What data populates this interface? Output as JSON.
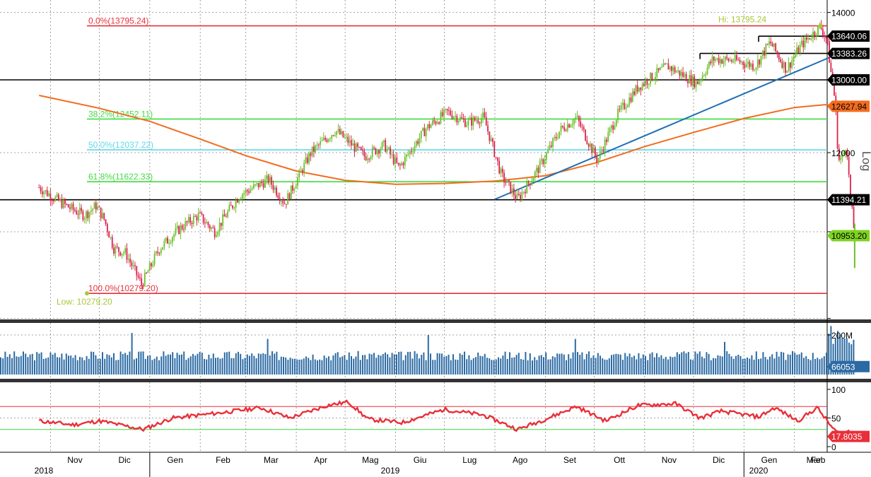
{
  "chart_data": {
    "type": "candlestick",
    "months": [
      "Nov",
      "Dic",
      "Gen",
      "Feb",
      "Mar",
      "Apr",
      "Mag",
      "Giu",
      "Lug",
      "Ago",
      "Set",
      "Ott",
      "Nov",
      "Dic",
      "Gen",
      "Feb",
      "Mar"
    ],
    "years": [
      "2018",
      "2019",
      "2020"
    ],
    "price_axis": {
      "ticks": [
        "14000",
        "13000",
        "12000"
      ],
      "scale_label": "Log",
      "range": [
        10000,
        14200
      ]
    },
    "levels": [
      {
        "label": "0.0%(13795.24)",
        "value": 13795.24,
        "color": "#e8303a"
      },
      {
        "label": "38.2%(12452.11)",
        "value": 12452.11,
        "color": "#3fdc3f"
      },
      {
        "label": "50.0%(12037.22)",
        "value": 12037.22,
        "color": "#5fd8ea"
      },
      {
        "label": "61.8%(11622.33)",
        "value": 11622.33,
        "color": "#3fdc3f"
      },
      {
        "label": "100.0%(10279.20)",
        "value": 10279.2,
        "color": "#e8303a"
      }
    ],
    "hlines": [
      13000.0,
      11394.21
    ],
    "resistance_segments": [
      {
        "value": 13640.06,
        "from_date": "2020-01-10",
        "to_date": "2020-03-03"
      },
      {
        "value": 13383.26,
        "from_date": "2019-12-05",
        "to_date": "2020-03-03"
      }
    ],
    "trendline": {
      "from_date": "2019-08-01",
      "from_value": 11400,
      "to_date": "2020-03-03",
      "to_value": 13420
    },
    "hi_label": "Hi: 13795.24",
    "low_label": "Low: 10279.20",
    "price_tags": [
      {
        "text": "13640.06",
        "value": 13640.06,
        "bg": "#000000",
        "fg": "#ffffff"
      },
      {
        "text": "13383.26",
        "value": 13383.26,
        "bg": "#000000",
        "fg": "#ffffff"
      },
      {
        "text": "13000.00",
        "value": 13000.0,
        "bg": "#000000",
        "fg": "#ffffff"
      },
      {
        "text": "12627.94",
        "value": 12627.94,
        "bg": "#f26c1f",
        "fg": "#000000"
      },
      {
        "text": "11394.21",
        "value": 11394.21,
        "bg": "#000000",
        "fg": "#ffffff"
      },
      {
        "text": "10953.20",
        "value": 10953.2,
        "bg": "#7ed321",
        "fg": "#000000"
      }
    ],
    "moving_average": [
      {
        "date": "2018-10-25",
        "value": 12780
      },
      {
        "date": "2018-12-01",
        "value": 12600
      },
      {
        "date": "2019-01-01",
        "value": 12420
      },
      {
        "date": "2019-02-01",
        "value": 12180
      },
      {
        "date": "2019-03-01",
        "value": 11960
      },
      {
        "date": "2019-04-01",
        "value": 11760
      },
      {
        "date": "2019-05-01",
        "value": 11640
      },
      {
        "date": "2019-06-01",
        "value": 11590
      },
      {
        "date": "2019-07-01",
        "value": 11600
      },
      {
        "date": "2019-08-01",
        "value": 11630
      },
      {
        "date": "2019-09-01",
        "value": 11700
      },
      {
        "date": "2019-10-01",
        "value": 11860
      },
      {
        "date": "2019-11-01",
        "value": 12080
      },
      {
        "date": "2019-12-01",
        "value": 12270
      },
      {
        "date": "2020-01-01",
        "value": 12460
      },
      {
        "date": "2020-02-01",
        "value": 12610
      },
      {
        "date": "2020-02-20",
        "value": 12650
      },
      {
        "date": "2020-03-01",
        "value": 12627.94
      }
    ],
    "price_path": [
      {
        "date": "2018-10-25",
        "value": 11550
      },
      {
        "date": "2018-11-08",
        "value": 11350
      },
      {
        "date": "2018-11-15",
        "value": 11270
      },
      {
        "date": "2018-11-22",
        "value": 11200
      },
      {
        "date": "2018-11-29",
        "value": 11320
      },
      {
        "date": "2018-12-04",
        "value": 11150
      },
      {
        "date": "2018-12-10",
        "value": 10800
      },
      {
        "date": "2018-12-17",
        "value": 10750
      },
      {
        "date": "2018-12-27",
        "value": 10380
      },
      {
        "date": "2019-01-07",
        "value": 10800
      },
      {
        "date": "2019-01-20",
        "value": 11050
      },
      {
        "date": "2019-01-31",
        "value": 11200
      },
      {
        "date": "2019-02-10",
        "value": 11000
      },
      {
        "date": "2019-02-25",
        "value": 11450
      },
      {
        "date": "2019-03-15",
        "value": 11650
      },
      {
        "date": "2019-03-25",
        "value": 11350
      },
      {
        "date": "2019-04-10",
        "value": 12000
      },
      {
        "date": "2019-04-25",
        "value": 12300
      },
      {
        "date": "2019-05-13",
        "value": 11950
      },
      {
        "date": "2019-05-25",
        "value": 12100
      },
      {
        "date": "2019-06-03",
        "value": 11800
      },
      {
        "date": "2019-06-20",
        "value": 12330
      },
      {
        "date": "2019-07-03",
        "value": 12550
      },
      {
        "date": "2019-07-15",
        "value": 12400
      },
      {
        "date": "2019-07-25",
        "value": 12480
      },
      {
        "date": "2019-08-05",
        "value": 11700
      },
      {
        "date": "2019-08-15",
        "value": 11400
      },
      {
        "date": "2019-08-28",
        "value": 11800
      },
      {
        "date": "2019-09-10",
        "value": 12300
      },
      {
        "date": "2019-09-20",
        "value": 12470
      },
      {
        "date": "2019-10-03",
        "value": 11900
      },
      {
        "date": "2019-10-15",
        "value": 12500
      },
      {
        "date": "2019-10-28",
        "value": 12900
      },
      {
        "date": "2019-11-15",
        "value": 13200
      },
      {
        "date": "2019-12-03",
        "value": 12950
      },
      {
        "date": "2019-12-13",
        "value": 13300
      },
      {
        "date": "2019-12-27",
        "value": 13280
      },
      {
        "date": "2020-01-08",
        "value": 13200
      },
      {
        "date": "2020-01-17",
        "value": 13550
      },
      {
        "date": "2020-01-27",
        "value": 13150
      },
      {
        "date": "2020-02-05",
        "value": 13500
      },
      {
        "date": "2020-02-17",
        "value": 13790
      },
      {
        "date": "2020-02-21",
        "value": 13580
      },
      {
        "date": "2020-02-24",
        "value": 13000
      },
      {
        "date": "2020-02-26",
        "value": 12700
      },
      {
        "date": "2020-02-28",
        "value": 11900
      },
      {
        "date": "2020-03-02",
        "value": 11950
      },
      {
        "date": "2020-03-04",
        "value": 12150
      },
      {
        "date": "2020-03-06",
        "value": 11500
      },
      {
        "date": "2020-03-09",
        "value": 10950
      }
    ],
    "volume": {
      "ticks": [
        "200M"
      ],
      "range": [
        0,
        250
      ],
      "last_tag": "66053",
      "typical": 95,
      "spikes": [
        {
          "date": "2018-12-21",
          "value": 210
        },
        {
          "date": "2019-03-15",
          "value": 180
        },
        {
          "date": "2019-06-21",
          "value": 200
        },
        {
          "date": "2019-09-20",
          "value": 180
        },
        {
          "date": "2019-12-20",
          "value": 165
        },
        {
          "date": "2020-02-24",
          "value": 245
        },
        {
          "date": "2020-02-28",
          "value": 220
        }
      ]
    },
    "rsi": {
      "ticks": [
        "100",
        "50",
        "0"
      ],
      "range": [
        0,
        100
      ],
      "overbought": 70,
      "oversold": 30,
      "last_tag": "17.8035",
      "points": [
        {
          "date": "2018-10-25",
          "value": 45
        },
        {
          "date": "2018-11-15",
          "value": 38
        },
        {
          "date": "2018-12-01",
          "value": 45
        },
        {
          "date": "2018-12-28",
          "value": 30
        },
        {
          "date": "2019-01-15",
          "value": 50
        },
        {
          "date": "2019-02-10",
          "value": 58
        },
        {
          "date": "2019-03-10",
          "value": 68
        },
        {
          "date": "2019-03-28",
          "value": 50
        },
        {
          "date": "2019-04-20",
          "value": 72
        },
        {
          "date": "2019-05-03",
          "value": 78
        },
        {
          "date": "2019-05-15",
          "value": 48
        },
        {
          "date": "2019-06-05",
          "value": 42
        },
        {
          "date": "2019-07-01",
          "value": 65
        },
        {
          "date": "2019-07-25",
          "value": 55
        },
        {
          "date": "2019-08-15",
          "value": 30
        },
        {
          "date": "2019-09-01",
          "value": 48
        },
        {
          "date": "2019-09-20",
          "value": 70
        },
        {
          "date": "2019-10-08",
          "value": 45
        },
        {
          "date": "2019-10-28",
          "value": 72
        },
        {
          "date": "2019-11-20",
          "value": 75
        },
        {
          "date": "2019-12-05",
          "value": 50
        },
        {
          "date": "2019-12-18",
          "value": 62
        },
        {
          "date": "2020-01-10",
          "value": 52
        },
        {
          "date": "2020-01-20",
          "value": 68
        },
        {
          "date": "2020-02-03",
          "value": 45
        },
        {
          "date": "2020-02-15",
          "value": 68
        },
        {
          "date": "2020-02-25",
          "value": 30
        },
        {
          "date": "2020-03-02",
          "value": 18
        },
        {
          "date": "2020-03-05",
          "value": 28
        },
        {
          "date": "2020-03-09",
          "value": 17.8
        }
      ]
    }
  }
}
